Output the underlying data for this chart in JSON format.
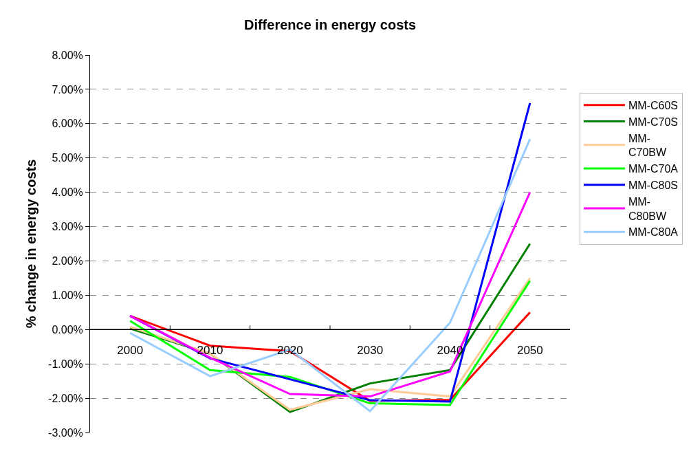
{
  "chart_data": {
    "type": "line",
    "title": "Difference in energy costs",
    "ylabel": "% change in energy costs",
    "categories": [
      "2000",
      "2010",
      "2020",
      "2030",
      "2040",
      "2050"
    ],
    "series": [
      {
        "name": "MM-C60S",
        "color": "#ff0000",
        "values": [
          0.4,
          -0.47,
          -0.63,
          -2.08,
          -2.05,
          0.5
        ]
      },
      {
        "name": "MM-C70S",
        "color": "#008000",
        "values": [
          0.03,
          -0.7,
          -2.4,
          -1.57,
          -1.18,
          2.5
        ]
      },
      {
        "name": "MM-C70BW",
        "color": "#ffcc99",
        "values": [
          0.08,
          -0.7,
          -2.34,
          -1.74,
          -1.95,
          1.5
        ]
      },
      {
        "name": "MM-C70A",
        "color": "#00ff00",
        "values": [
          0.25,
          -1.18,
          -1.38,
          -2.15,
          -2.2,
          1.42
        ]
      },
      {
        "name": "MM-C80S",
        "color": "#0000ff",
        "values": [
          0.4,
          -0.84,
          -1.45,
          -2.06,
          -2.1,
          6.6
        ]
      },
      {
        "name": "MM-C80BW",
        "color": "#ff00ff",
        "values": [
          0.4,
          -0.82,
          -1.88,
          -1.95,
          -1.22,
          4.0
        ]
      },
      {
        "name": "MM-C80A",
        "color": "#99ccff",
        "values": [
          -0.1,
          -1.36,
          -0.58,
          -2.38,
          0.2,
          5.55
        ]
      }
    ],
    "ylim": [
      -3,
      8
    ],
    "yticks": [
      {
        "value": -3,
        "label": "-3.00%"
      },
      {
        "value": -2,
        "label": "-2.00%"
      },
      {
        "value": -1,
        "label": "-1.00%"
      },
      {
        "value": 0,
        "label": "0.00%"
      },
      {
        "value": 1,
        "label": "1.00%"
      },
      {
        "value": 2,
        "label": "2.00%"
      },
      {
        "value": 3,
        "label": "3.00%"
      },
      {
        "value": 4,
        "label": "4.00%"
      },
      {
        "value": 5,
        "label": "5.00%"
      },
      {
        "value": 6,
        "label": "6.00%"
      },
      {
        "value": 7,
        "label": "7.00%"
      },
      {
        "value": 8,
        "label": "8.00%"
      }
    ],
    "grid": "y",
    "legend": "right",
    "marker": "none",
    "line_style": "solid"
  }
}
